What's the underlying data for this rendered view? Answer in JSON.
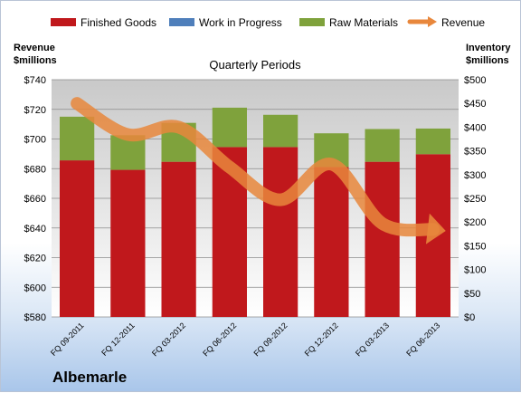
{
  "chart_data": {
    "type": "bar",
    "stacked": true,
    "title": "Quarterly Periods",
    "company": "Albemarle",
    "left_axis": {
      "title_line1": "Revenue",
      "title_line2": "$millions",
      "ylim": [
        580,
        740
      ],
      "ticks": [
        740,
        720,
        700,
        680,
        660,
        640,
        620,
        600,
        580
      ],
      "prefix": "$"
    },
    "right_axis": {
      "title_line1": "Inventory",
      "title_line2": "$millions",
      "ylim": [
        0,
        500
      ],
      "ticks": [
        500,
        450,
        400,
        350,
        300,
        250,
        200,
        150,
        100,
        50,
        0
      ],
      "prefix": "$"
    },
    "categories": [
      "FQ 09-2011",
      "FQ 12-2011",
      "FQ 03-2012",
      "FQ 06-2012",
      "FQ 09-2012",
      "FQ 12-2012",
      "FQ 03-2013",
      "FQ 06-2013"
    ],
    "series": [
      {
        "name": "Finished Goods",
        "type": "bar",
        "axis": "right",
        "color": "#c0181c",
        "values": [
          330,
          310,
          327,
          358,
          358,
          316,
          327,
          343
        ]
      },
      {
        "name": "Work in Progress",
        "type": "bar",
        "axis": "right",
        "color": "#4f7fbb",
        "values": [
          0,
          0,
          0,
          0,
          0,
          0,
          0,
          0
        ]
      },
      {
        "name": "Raw Materials",
        "type": "bar",
        "axis": "right",
        "color": "#7fa23c",
        "values": [
          92,
          73,
          82,
          83,
          68,
          71,
          69,
          54
        ]
      },
      {
        "name": "Revenue",
        "type": "line",
        "axis": "left",
        "color": "#e8873c",
        "values": [
          724,
          703,
          708,
          681,
          659,
          683,
          643,
          639
        ]
      }
    ],
    "grid": true,
    "legend_position": "top"
  }
}
